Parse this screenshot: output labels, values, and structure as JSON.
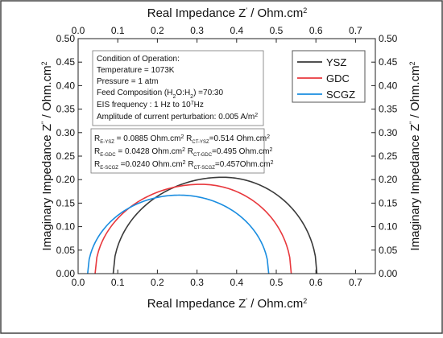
{
  "chart_data": {
    "type": "line",
    "xlabel_bottom": "Real Impedance Z' / Ohm.cm2",
    "xlabel_top": "Real Impedance Z' / Ohm.cm2",
    "ylabel_left": "Imaginary Impedance Z'' / Ohm.cm2",
    "ylabel_right": "Imaginary Impedance Z'' / Ohm.cm2",
    "xlim": [
      0.0,
      0.75
    ],
    "ylim": [
      0.0,
      0.5
    ],
    "x_ticks": [
      "0.0",
      "0.1",
      "0.2",
      "0.3",
      "0.4",
      "0.5",
      "0.6",
      "0.7"
    ],
    "y_ticks": [
      "0.00",
      "0.05",
      "0.10",
      "0.15",
      "0.20",
      "0.25",
      "0.30",
      "0.35",
      "0.40",
      "0.45",
      "0.50"
    ],
    "grid": false,
    "legend_position": "top-right",
    "series": [
      {
        "name": "YSZ",
        "color": "#3a3a3a",
        "r_e": 0.0885,
        "r_ct": 0.514,
        "z_imag_max": 0.205,
        "z_real_at_max": 0.365
      },
      {
        "name": "GDC",
        "color": "#e8383d",
        "r_e": 0.0428,
        "r_ct": 0.495,
        "z_imag_max": 0.19,
        "z_real_at_max": 0.31
      },
      {
        "name": "SCGZ",
        "color": "#1a8de0",
        "r_e": 0.024,
        "r_ct": 0.457,
        "z_imag_max": 0.167,
        "z_real_at_max": 0.255
      }
    ],
    "conditions": {
      "heading": "Condition of Operation:",
      "temperature": "Temperature = 1073K",
      "pressure": "Pressure = 1 atm",
      "feed": "Feed Composition (H2O:H2) =70:30",
      "eis": "EIS frequency : 1 Hz to 10^7 Hz",
      "amplitude": "Amplitude of current perturbation: 0.005 A/m2"
    },
    "resistances": [
      "R_E-YSZ = 0.0885 Ohm.cm2 R_CT-YSZ=0.514 Ohm.cm2",
      "R_E-GDC = 0.0428 Ohm.cm2 R_CT-GDC=0.495 Ohm.cm2",
      "R_E-SCGZ =0.0240 Ohm.cm2 R_CT-SCGZ=0.457Ohm.cm2"
    ]
  }
}
